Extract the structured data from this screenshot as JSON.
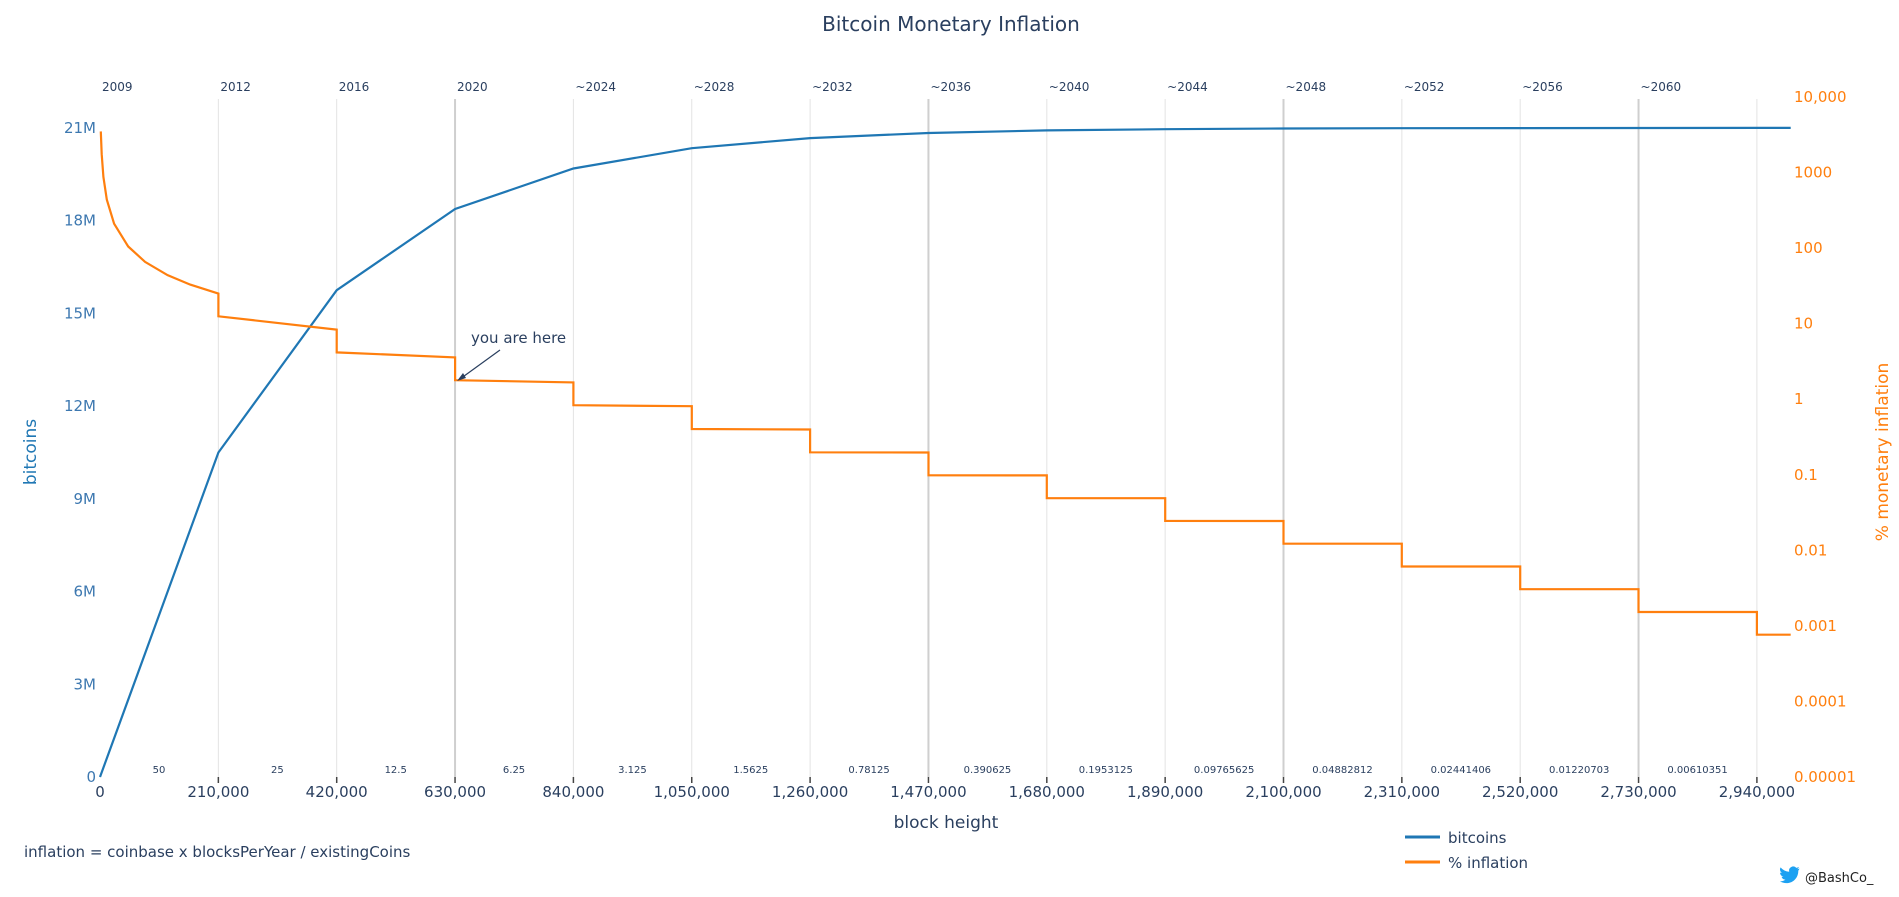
{
  "chart_data": {
    "type": "line",
    "title": "Bitcoin Monetary Inflation",
    "xlabel": "block height",
    "ylabel_left": "bitcoins",
    "ylabel_right": "% monetary inflation",
    "xlim": [
      0,
      3000000
    ],
    "ylim_left": [
      0,
      22000000
    ],
    "ylim_right": [
      1e-05,
      10000
    ],
    "y_right_scale": "log",
    "grid": "vertical",
    "x_ticks": [
      0,
      210000,
      420000,
      630000,
      840000,
      1050000,
      1260000,
      1470000,
      1680000,
      1890000,
      2100000,
      2310000,
      2520000,
      2730000,
      2940000
    ],
    "x_tick_labels": [
      "0",
      "210,000",
      "420,000",
      "630,000",
      "840,000",
      "1,050,000",
      "1,260,000",
      "1,470,000",
      "1,680,000",
      "1,890,000",
      "2,100,000",
      "2,310,000",
      "2,520,000",
      "2,730,000",
      "2,940,000"
    ],
    "y_left_ticks": [
      0,
      3000000,
      6000000,
      9000000,
      12000000,
      15000000,
      18000000,
      21000000
    ],
    "y_left_tick_labels": [
      "0",
      "3M",
      "6M",
      "9M",
      "12M",
      "15M",
      "18M",
      "21M"
    ],
    "y_right_ticks": [
      1e-05,
      0.0001,
      0.001,
      0.01,
      0.1,
      1,
      10,
      100,
      1000,
      10000
    ],
    "y_right_tick_labels": [
      "0.00001",
      "0.0001",
      "0.001",
      "0.01",
      "0.1",
      "1",
      "10",
      "100",
      "1000",
      "10,000"
    ],
    "year_labels": [
      "2009",
      "2012",
      "2016",
      "2020",
      "~2024",
      "~2028",
      "~2032",
      "~2036",
      "~2040",
      "~2044",
      "~2048",
      "~2052",
      "~2056",
      "~2060"
    ],
    "block_rewards": [
      "50",
      "25",
      "12.5",
      "6.25",
      "3.125",
      "1.5625",
      "0.78125",
      "0.390625",
      "0.1953125",
      "0.09765625",
      "0.04882812",
      "0.02441406",
      "0.01220703",
      "0.00610351"
    ],
    "emphasized_gridlines": [
      630000,
      1470000,
      2100000,
      2730000
    ],
    "legend_position": "bottom-right",
    "series": [
      {
        "name": "bitcoins",
        "axis": "left",
        "color": "#1f77b4",
        "points": [
          [
            0,
            0
          ],
          [
            210000,
            10500000
          ],
          [
            420000,
            15750000
          ],
          [
            630000,
            18375000
          ],
          [
            840000,
            19687500
          ],
          [
            1050000,
            20343750
          ],
          [
            1260000,
            20671875
          ],
          [
            1470000,
            20835938
          ],
          [
            1680000,
            20917969
          ],
          [
            1890000,
            20958984
          ],
          [
            2100000,
            20979492
          ],
          [
            2310000,
            20989746
          ],
          [
            2520000,
            20994873
          ],
          [
            2730000,
            20997437
          ],
          [
            2940000,
            20998718
          ],
          [
            3000000,
            20998901
          ]
        ]
      },
      {
        "name": "% inflation",
        "axis": "right",
        "color": "#ff7f0e",
        "points": [
          [
            1500,
            3504
          ],
          [
            3000,
            1752
          ],
          [
            6000,
            876
          ],
          [
            12000,
            438
          ],
          [
            25000,
            210.2
          ],
          [
            50000,
            105.1
          ],
          [
            80000,
            65.7
          ],
          [
            120000,
            43.8
          ],
          [
            160000,
            32.85
          ],
          [
            210000,
            25.03
          ],
          [
            210000,
            12.514
          ],
          [
            420000,
            8.343
          ],
          [
            420000,
            4.171
          ],
          [
            630000,
            3.576
          ],
          [
            630000,
            1.788
          ],
          [
            840000,
            1.669
          ],
          [
            840000,
            0.8343
          ],
          [
            1050000,
            0.8074
          ],
          [
            1050000,
            0.4037
          ],
          [
            1260000,
            0.3973
          ],
          [
            1260000,
            0.19864
          ],
          [
            1470000,
            0.19708
          ],
          [
            1470000,
            0.098537
          ],
          [
            1680000,
            0.09815
          ],
          [
            1680000,
            0.049075
          ],
          [
            1890000,
            0.048979
          ],
          [
            1890000,
            0.02449
          ],
          [
            2100000,
            0.024466
          ],
          [
            2100000,
            0.012233
          ],
          [
            2310000,
            0.012227
          ],
          [
            2310000,
            0.0061134
          ],
          [
            2520000,
            0.0061119
          ],
          [
            2520000,
            0.003056
          ],
          [
            2730000,
            0.0030556
          ],
          [
            2730000,
            0.0015278
          ],
          [
            2940000,
            0.0015277
          ],
          [
            2940000,
            0.00076385
          ],
          [
            3000000,
            0.00076385
          ]
        ]
      }
    ],
    "annotation": {
      "text": "you are here",
      "x": 630000,
      "y_right": 1.788
    }
  },
  "footer": {
    "formula": "inflation = coinbase x blocksPerYear / existingCoins",
    "credit": "@BashCo_",
    "credit_icon": "twitter-bird-icon"
  }
}
